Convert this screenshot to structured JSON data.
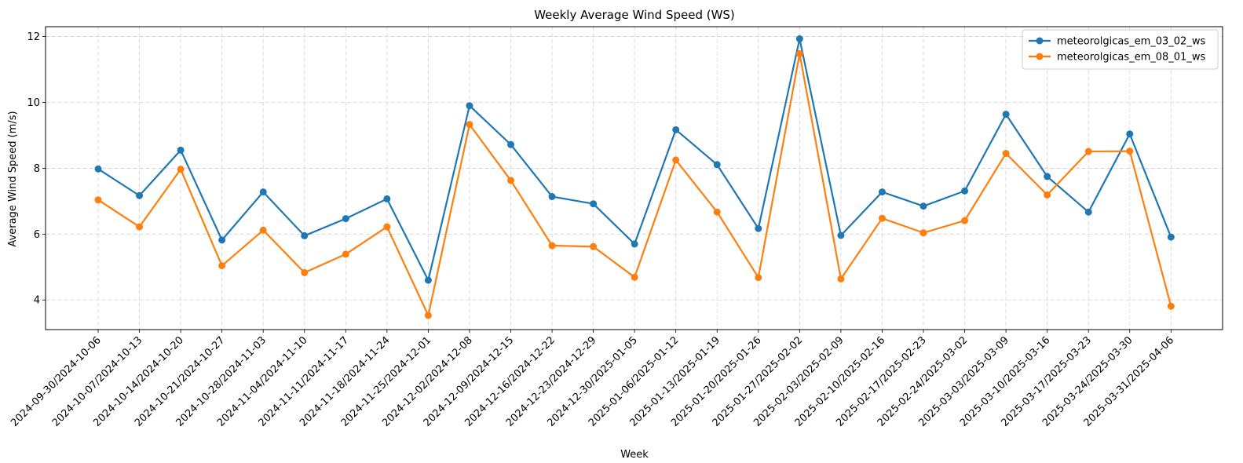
{
  "chart_data": {
    "type": "line",
    "title": "Weekly Average Wind Speed (WS)",
    "xlabel": "Week",
    "ylabel": "Average Wind Speed (m/s)",
    "ylim": [
      3.1,
      12.3
    ],
    "yticks": [
      4,
      6,
      8,
      10,
      12
    ],
    "grid": true,
    "legend_position": "top-right",
    "categories": [
      "2024-09-30/2024-10-06",
      "2024-10-07/2024-10-13",
      "2024-10-14/2024-10-20",
      "2024-10-21/2024-10-27",
      "2024-10-28/2024-11-03",
      "2024-11-04/2024-11-10",
      "2024-11-11/2024-11-17",
      "2024-11-18/2024-11-24",
      "2024-11-25/2024-12-01",
      "2024-12-02/2024-12-08",
      "2024-12-09/2024-12-15",
      "2024-12-16/2024-12-22",
      "2024-12-23/2024-12-29",
      "2024-12-30/2025-01-05",
      "2025-01-06/2025-01-12",
      "2025-01-13/2025-01-19",
      "2025-01-20/2025-01-26",
      "2025-01-27/2025-02-02",
      "2025-02-03/2025-02-09",
      "2025-02-10/2025-02-16",
      "2025-02-17/2025-02-23",
      "2025-02-24/2025-03-02",
      "2025-03-03/2025-03-09",
      "2025-03-10/2025-03-16",
      "2025-03-17/2025-03-23",
      "2025-03-24/2025-03-30",
      "2025-03-31/2025-04-06"
    ],
    "series": [
      {
        "name": "meteorolgicas_em_03_02_ws",
        "color": "#1f77b4",
        "values": [
          7.98,
          7.17,
          8.55,
          5.82,
          7.28,
          5.95,
          6.47,
          7.07,
          4.6,
          9.9,
          8.72,
          7.14,
          6.92,
          5.7,
          9.17,
          8.11,
          6.17,
          11.93,
          5.96,
          7.28,
          6.85,
          7.31,
          9.64,
          7.75,
          6.67,
          9.04,
          5.91
        ]
      },
      {
        "name": "meteorolgicas_em_08_01_ws",
        "color": "#ff7f0e",
        "values": [
          7.04,
          6.22,
          7.97,
          5.04,
          6.12,
          4.83,
          5.39,
          6.22,
          3.53,
          9.33,
          7.63,
          5.65,
          5.62,
          4.69,
          8.25,
          6.67,
          4.68,
          11.48,
          4.64,
          6.48,
          6.04,
          6.41,
          8.45,
          7.19,
          8.51,
          8.52,
          3.81
        ]
      }
    ]
  }
}
